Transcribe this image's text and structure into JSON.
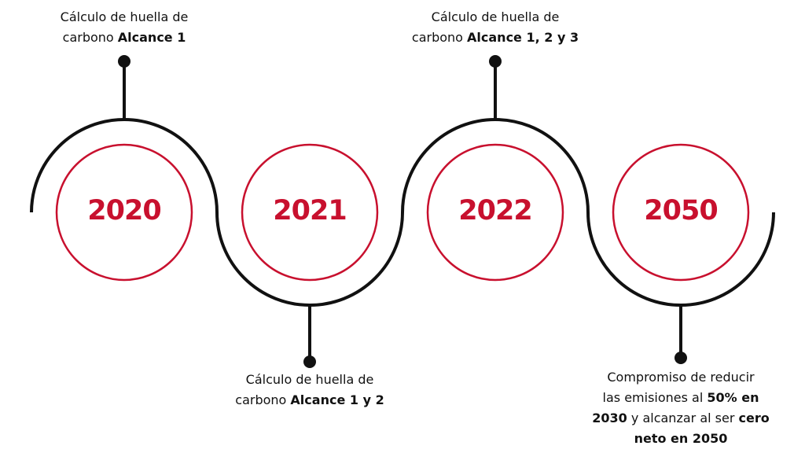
{
  "colors": {
    "accent": "#c8102e",
    "line": "#111111",
    "background": "#ffffff"
  },
  "milestones": [
    {
      "year": "2020",
      "caption": [
        {
          "text": "Cálculo de huella de"
        },
        {
          "text": "carbono ",
          "strong": "Alcance 1"
        }
      ]
    },
    {
      "year": "2021",
      "caption": [
        {
          "text": "Cálculo de huella de"
        },
        {
          "text": "carbono ",
          "strong": "Alcance 1 y 2"
        }
      ]
    },
    {
      "year": "2022",
      "caption": [
        {
          "text": "Cálculo de huella de"
        },
        {
          "text": "carbono ",
          "strong": "Alcance 1, 2 y 3"
        }
      ]
    },
    {
      "year": "2050",
      "caption": [
        {
          "text": "Compromiso de reducir"
        },
        {
          "text": "las emisiones al ",
          "strong": "50% en"
        },
        {
          "strong": "2030",
          "after": " y alcanzar al ser ",
          "strong2": "cero"
        },
        {
          "strong": "neto en 2050"
        }
      ]
    }
  ]
}
